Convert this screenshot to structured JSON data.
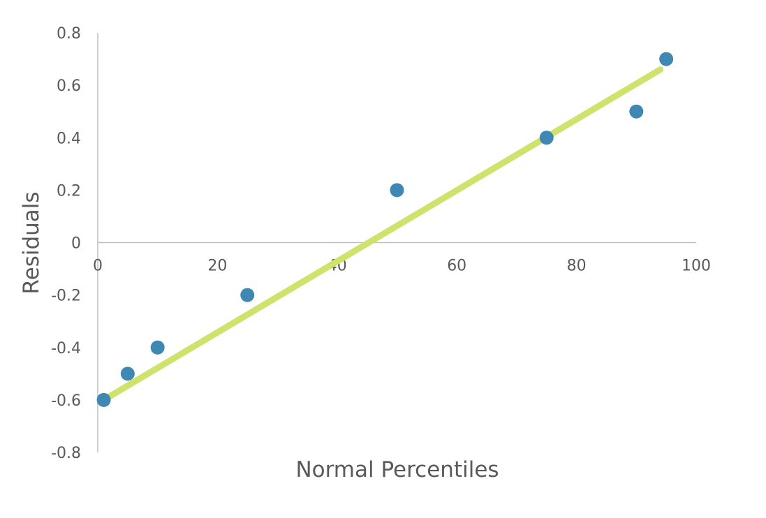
{
  "chart_data": {
    "type": "scatter",
    "title": "",
    "xlabel": "Normal Percentiles",
    "ylabel": "Residuals",
    "xlim": [
      0,
      100
    ],
    "ylim": [
      -0.8,
      0.8
    ],
    "x_ticks": [
      0,
      20,
      40,
      60,
      80,
      100
    ],
    "x_tick_labels": [
      "0",
      "20",
      "40",
      "60",
      "80",
      "100"
    ],
    "y_ticks": [
      0.8,
      0.6,
      0.4,
      0.2,
      0,
      -0.2,
      -0.4,
      -0.6,
      -0.8
    ],
    "y_tick_labels": [
      "0.8",
      "0.6",
      "0.4",
      "0.2",
      "0",
      "-0.2",
      "-0.4",
      "-0.6",
      "-0.8"
    ],
    "grid": false,
    "legend": "none",
    "series": [
      {
        "points": [
          {
            "x": 1,
            "y": -0.6
          },
          {
            "x": 5,
            "y": -0.5
          },
          {
            "x": 10,
            "y": -0.4
          },
          {
            "x": 25,
            "y": -0.2
          },
          {
            "x": 50,
            "y": 0.2
          },
          {
            "x": 75,
            "y": 0.4
          },
          {
            "x": 90,
            "y": 0.5
          },
          {
            "x": 95,
            "y": 0.7
          }
        ],
        "color": "#3f88b3"
      }
    ],
    "trendline": {
      "type": "linear",
      "from": {
        "x": 1,
        "y": -0.6
      },
      "to": {
        "x": 94,
        "y": 0.66
      },
      "color": "#cfe26b"
    },
    "axis_color": "#bfbfbf",
    "text_color": "#595959"
  }
}
